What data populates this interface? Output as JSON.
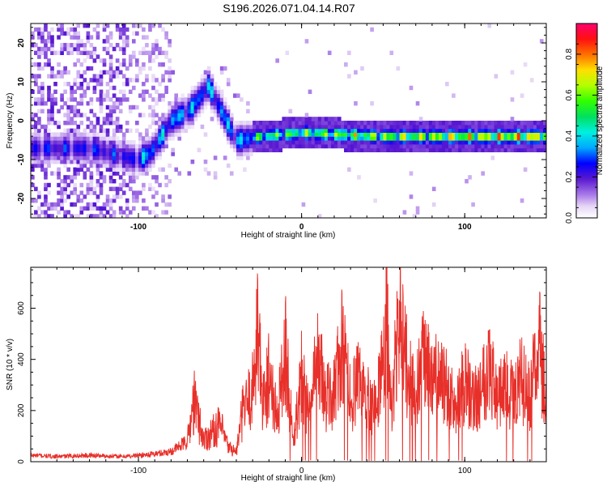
{
  "title": "S196.2026.071.04.14.R07",
  "chart_data": [
    {
      "type": "heatmap",
      "xlabel": "Height of straight line (km)",
      "ylabel": "Frequency (Hz)",
      "xlim": [
        -166,
        150
      ],
      "ylim": [
        -25,
        25
      ],
      "x_ticks": [
        "-100",
        "0",
        "100"
      ],
      "y_ticks": [
        "-20",
        "-10",
        "0",
        "10",
        "20"
      ],
      "colorbar": {
        "label": "Normalized spectral amplitude",
        "range": [
          0,
          0.95
        ],
        "ticks": [
          "0.0",
          "0.2",
          "0.4",
          "0.6",
          "0.8"
        ]
      },
      "ridge": [
        {
          "x": -130,
          "y": -7
        },
        {
          "x": -100,
          "y": -10
        },
        {
          "x": -92,
          "y": -8
        },
        {
          "x": -80,
          "y": 0
        },
        {
          "x": -68,
          "y": 3
        },
        {
          "x": -57,
          "y": 9
        },
        {
          "x": -40,
          "y": -5
        },
        {
          "x": -25,
          "y": -4
        },
        {
          "x": 0,
          "y": -3
        },
        {
          "x": 25,
          "y": -3.5
        },
        {
          "x": 50,
          "y": -4
        },
        {
          "x": 75,
          "y": -4
        },
        {
          "x": 100,
          "y": -4
        },
        {
          "x": 130,
          "y": -4
        },
        {
          "x": 148,
          "y": -4
        }
      ]
    },
    {
      "type": "line",
      "xlabel": "Height of straight line (km)",
      "ylabel": "SNR (10 * v/v)",
      "xlim": [
        -166,
        150
      ],
      "ylim": [
        0,
        760
      ],
      "x_ticks": [
        "-100",
        "0",
        "100"
      ],
      "y_ticks": [
        "0",
        "200",
        "400",
        "600"
      ],
      "series": [
        {
          "name": "SNR",
          "color": "#e8302a",
          "x": [
            -166,
            -150,
            -130,
            -110,
            -90,
            -80,
            -70,
            -66,
            -60,
            -50,
            -45,
            -40,
            -35,
            -30,
            -27,
            -24,
            -20,
            -15,
            -10,
            -5,
            0,
            5,
            10,
            15,
            20,
            25,
            30,
            35,
            40,
            45,
            50,
            52,
            55,
            60,
            65,
            70,
            75,
            80,
            85,
            90,
            95,
            100,
            105,
            110,
            115,
            120,
            125,
            130,
            135,
            140,
            145,
            150
          ],
          "y": [
            25,
            20,
            25,
            20,
            30,
            40,
            80,
            250,
            90,
            150,
            60,
            40,
            250,
            350,
            690,
            280,
            430,
            200,
            560,
            100,
            430,
            220,
            520,
            300,
            350,
            560,
            310,
            380,
            330,
            260,
            470,
            760,
            240,
            720,
            430,
            320,
            500,
            390,
            420,
            330,
            250,
            400,
            290,
            360,
            500,
            290,
            380,
            330,
            400,
            300,
            570,
            380
          ]
        }
      ]
    }
  ]
}
